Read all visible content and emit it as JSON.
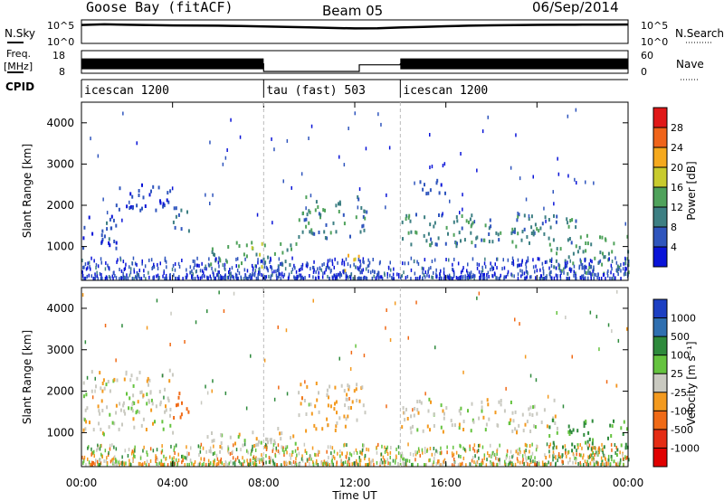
{
  "header": {
    "station": "Goose Bay (fitACF)",
    "beam": "Beam 05",
    "date": "06/Sep/2014"
  },
  "nsky_panel": {
    "left_label": "N.Sky",
    "right_label": "N.Search",
    "left_ticks": [
      "10^5",
      "10^0"
    ],
    "right_ticks": [
      "10^5",
      "10^0"
    ]
  },
  "freq_panel": {
    "left_label_top": "Freq.",
    "left_label_unit": "[MHz]",
    "right_label": "Nave",
    "left_ticks": [
      "18",
      "8"
    ],
    "right_ticks": [
      "60",
      "0"
    ]
  },
  "cpid_panel": {
    "label": "CPID",
    "segments": [
      {
        "name": "icescan 1200",
        "start_h": 0,
        "end_h": 8
      },
      {
        "name": "tau (fast) 503",
        "start_h": 8,
        "end_h": 14
      },
      {
        "name": "icescan 1200",
        "start_h": 14,
        "end_h": 24
      }
    ]
  },
  "x_axis": {
    "label": "Time UT",
    "ticks": [
      "00:00",
      "04:00",
      "08:00",
      "12:00",
      "16:00",
      "20:00",
      "00:00"
    ]
  },
  "range_axis": {
    "label": "Slant Range [km]",
    "ticks": [
      "1000",
      "2000",
      "3000",
      "4000"
    ]
  },
  "power_scale": {
    "label": "Power [dB]",
    "ticks": [
      "4",
      "8",
      "12",
      "16",
      "20",
      "24",
      "28"
    ],
    "colors": [
      "#0a14d8",
      "#2f55bd",
      "#3d7f83",
      "#4fa25b",
      "#c8cb2e",
      "#f5a91e",
      "#f0641a",
      "#e01818"
    ]
  },
  "velocity_scale": {
    "label": "Velocity [m s⁻¹]",
    "ticks": [
      "1000",
      "500",
      "100",
      "25",
      "-25",
      "-100",
      "-500",
      "-1000"
    ],
    "colors": [
      "#1c3fc2",
      "#2f6fb0",
      "#2e8a3c",
      "#65c33f",
      "#c9c9c0",
      "#f39a1f",
      "#f06a16",
      "#e52c14",
      "#e00000"
    ]
  },
  "chart_data": [
    {
      "type": "line",
      "title": "N.Sky / N.Search",
      "x": [
        0,
        1,
        2,
        3,
        4,
        5,
        6,
        7,
        8,
        9,
        10,
        11,
        12,
        13,
        14,
        15,
        16,
        17,
        18,
        19,
        20,
        21,
        22,
        23,
        24
      ],
      "series": [
        {
          "name": "N.Sky",
          "values": [
            40000,
            60000,
            45000,
            35000,
            30000,
            28000,
            25000,
            20000,
            15000,
            12000,
            9000,
            6000,
            4500,
            5000,
            8000,
            12000,
            18000,
            25000,
            32000,
            38000,
            42000,
            45000,
            48000,
            50000,
            52000
          ]
        }
      ],
      "xlim": [
        0,
        24
      ],
      "ylim": [
        1,
        100000
      ],
      "ylog": true
    },
    {
      "type": "line",
      "title": "Freq. / Nave",
      "x": [
        0,
        8,
        8,
        12.2,
        12.2,
        14,
        14,
        24
      ],
      "series": [
        {
          "name": "Freq.",
          "values": [
            12,
            12,
            8,
            8,
            11.5,
            11.5,
            12,
            12
          ]
        }
      ],
      "xlim": [
        0,
        24
      ],
      "ylim": [
        8,
        18
      ]
    },
    {
      "type": "heatmap",
      "title": "Power [dB]",
      "xlabel": "Time UT",
      "ylabel": "Slant Range [km]",
      "xlim": [
        0,
        24
      ],
      "ylim": [
        180,
        4500
      ],
      "color_ticks": [
        4,
        8,
        12,
        16,
        20,
        24,
        28
      ],
      "features": [
        {
          "t_start": 0,
          "t_end": 1.5,
          "range_start": 900,
          "range_end": 1800,
          "value": 8
        },
        {
          "t_start": 1.5,
          "t_end": 4.0,
          "range_start": 1800,
          "range_end": 2500,
          "value": 6
        },
        {
          "t_start": 4.0,
          "t_end": 4.8,
          "range_start": 1300,
          "range_end": 2000,
          "value": 10
        },
        {
          "t_start": 5.5,
          "t_end": 8.0,
          "range_start": 500,
          "range_end": 1100,
          "value": 16
        },
        {
          "t_start": 8.0,
          "t_end": 9.5,
          "range_start": 500,
          "range_end": 1100,
          "value": 14
        },
        {
          "t_start": 9.5,
          "t_end": 12.5,
          "range_start": 1200,
          "range_end": 2200,
          "value": 12
        },
        {
          "t_start": 11.5,
          "t_end": 12.2,
          "range_start": 400,
          "range_end": 800,
          "value": 24
        },
        {
          "t_start": 14.0,
          "t_end": 22.0,
          "range_start": 1000,
          "range_end": 1800,
          "value": 12
        },
        {
          "t_start": 14.5,
          "t_end": 16.0,
          "range_start": 2200,
          "range_end": 2600,
          "value": 8
        },
        {
          "t_start": 20.5,
          "t_end": 24.0,
          "range_start": 300,
          "range_end": 1300,
          "value": 14
        }
      ]
    },
    {
      "type": "heatmap",
      "title": "Velocity [m s⁻¹]",
      "xlabel": "Time UT",
      "ylabel": "Slant Range [km]",
      "xlim": [
        0,
        24
      ],
      "ylim": [
        180,
        4500
      ],
      "color_ticks": [
        1000,
        500,
        100,
        25,
        -25,
        -100,
        -500,
        -1000
      ],
      "features": [
        {
          "t_start": 0,
          "t_end": 4.0,
          "range_start": 900,
          "range_end": 2500,
          "value": 0
        },
        {
          "t_start": 4.0,
          "t_end": 4.8,
          "range_start": 1300,
          "range_end": 2000,
          "value": -150
        },
        {
          "t_start": 5.5,
          "t_end": 9.5,
          "range_start": 500,
          "range_end": 1100,
          "value": 0
        },
        {
          "t_start": 9.5,
          "t_end": 12.5,
          "range_start": 1000,
          "range_end": 2200,
          "value": -30
        },
        {
          "t_start": 14.0,
          "t_end": 21.0,
          "range_start": 1000,
          "range_end": 1800,
          "value": 0
        },
        {
          "t_start": 20.5,
          "t_end": 24.0,
          "range_start": 300,
          "range_end": 1300,
          "value": 120
        }
      ]
    }
  ]
}
